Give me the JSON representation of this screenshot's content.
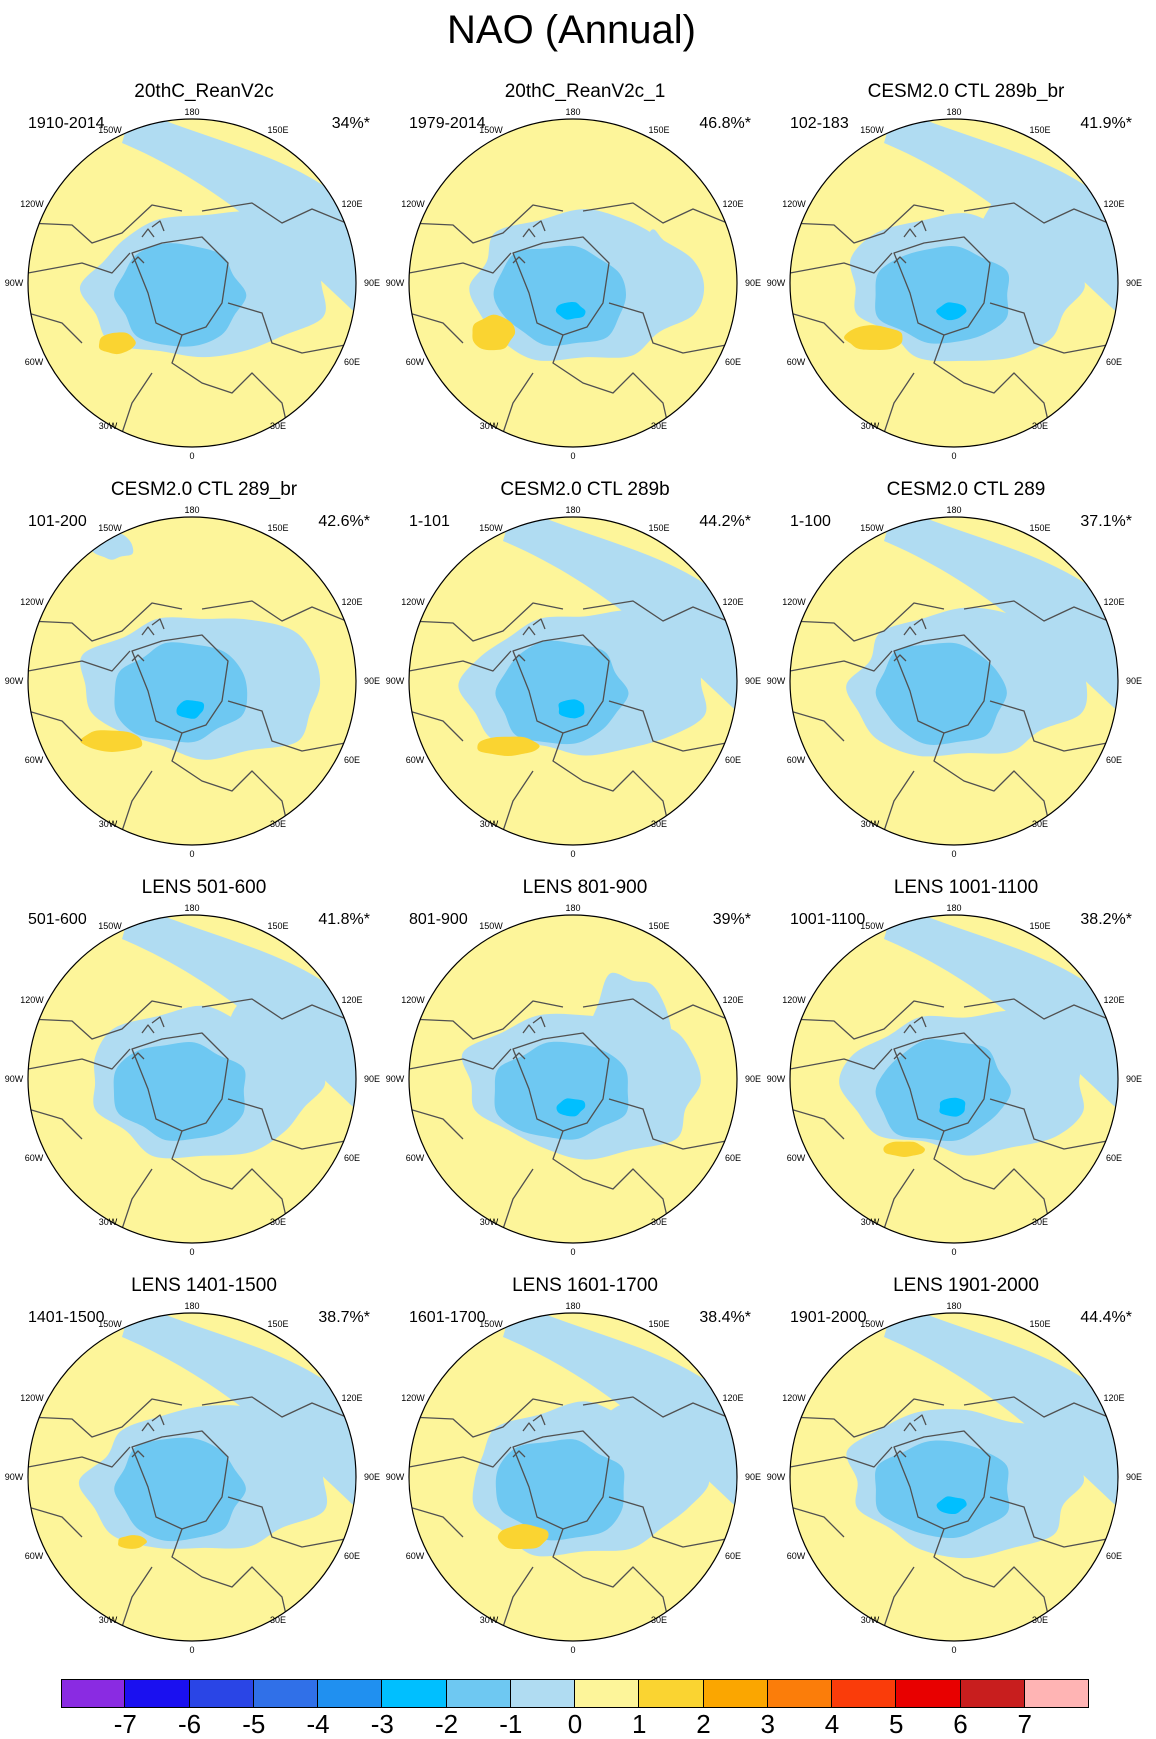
{
  "figure": {
    "title": "NAO (Annual)"
  },
  "lon_labels": {
    "top": "180",
    "upper_left": "150W",
    "upper_right": "150E",
    "left_high": "120W",
    "right_high": "120E",
    "left_mid": "90W",
    "right_mid": "90E",
    "left_low": "60W",
    "right_low": "60E",
    "lower_left": "30W",
    "lower_right": "30E",
    "bottom": "0"
  },
  "panels": [
    {
      "title": "20thC_ReanV2c",
      "years": "1910-2014",
      "variance": "34%*"
    },
    {
      "title": "20thC_ReanV2c_1",
      "years": "1979-2014",
      "variance": "46.8%*"
    },
    {
      "title": "CESM2.0 CTL 289b_br",
      "years": "102-183",
      "variance": "41.9%*"
    },
    {
      "title": "CESM2.0 CTL 289_br",
      "years": "101-200",
      "variance": "42.6%*"
    },
    {
      "title": "CESM2.0 CTL 289b",
      "years": "1-101",
      "variance": "44.2%*"
    },
    {
      "title": "CESM2.0 CTL 289",
      "years": "1-100",
      "variance": "37.1%*"
    },
    {
      "title": "LENS 501-600",
      "years": "501-600",
      "variance": "41.8%*"
    },
    {
      "title": "LENS 801-900",
      "years": "801-900",
      "variance": "39%*"
    },
    {
      "title": "LENS 1001-1100",
      "years": "1001-1100",
      "variance": "38.2%*"
    },
    {
      "title": "LENS 1401-1500",
      "years": "1401-1500",
      "variance": "38.7%*"
    },
    {
      "title": "LENS 1601-1700",
      "years": "1601-1700",
      "variance": "38.4%*"
    },
    {
      "title": "LENS 1901-2000",
      "years": "1901-2000",
      "variance": "44.4%*"
    }
  ],
  "colorbar": {
    "labels": [
      "-7",
      "-6",
      "-5",
      "-4",
      "-3",
      "-2",
      "-1",
      "0",
      "1",
      "2",
      "3",
      "4",
      "5",
      "6",
      "7"
    ],
    "colors": [
      "#8a2be2",
      "#1a10f0",
      "#2a45e6",
      "#3070e8",
      "#2090f0",
      "#00bfff",
      "#6ec8f2",
      "#b0dcf2",
      "#fdf59a",
      "#fad431",
      "#fba600",
      "#fb7d0a",
      "#fa3c0a",
      "#e80000",
      "#c81e1e",
      "#ffb4b4"
    ]
  },
  "palette": {
    "positive_weak": "#fdf59a",
    "positive_moderate": "#fad431",
    "negative_weak": "#b0dcf2",
    "negative_moderate": "#6ec8f2",
    "negative_strong": "#00bfff",
    "coastline": "#505050"
  }
}
